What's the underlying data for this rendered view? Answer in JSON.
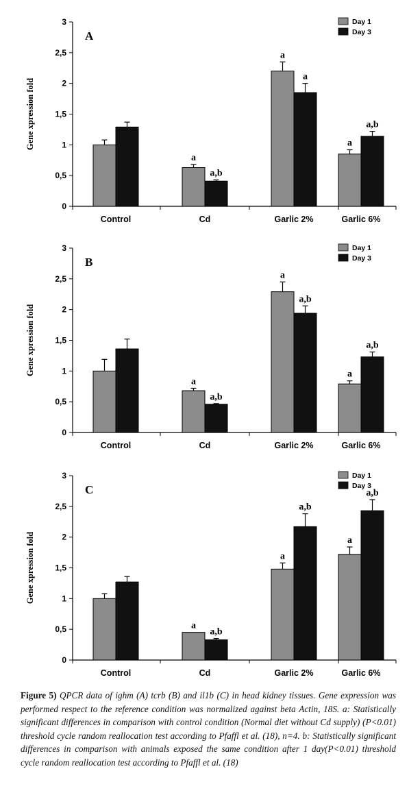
{
  "figure": {
    "caption_label": "Figure 5)",
    "caption_text": " QPCR data of ighm (A) tcrb (B) and il1b (C) in head kidney tissues. Gene expression was performed respect to the reference condition was normalized against beta Actin, 18S. a: Statistically significant differences  in comparison with control condition (Normal diet without Cd supply) (P<0.01) threshold cycle random reallocation test according to Pfaffl et al. (18), n=4. b: Statistically significant differences in comparison with animals exposed the same condition after 1 day(P<0.01) threshold cycle random reallocation test according to Pfaffl et al. (18)"
  },
  "chart_data": [
    {
      "type": "bar",
      "panel_label": "A",
      "ylabel": "Gene xpression fold",
      "ylim": [
        0,
        3
      ],
      "yticks": [
        "0",
        "0,5",
        "1",
        "1,5",
        "2",
        "2,5",
        "3"
      ],
      "categories": [
        "Control",
        "Cd",
        "Garlic 2%",
        "Garlic 6%"
      ],
      "legend_position": "top-right",
      "grid": false,
      "colors": [
        "#8c8c8c",
        "#111111"
      ],
      "series": [
        {
          "name": "Day 1",
          "values": [
            1.0,
            0.63,
            2.2,
            0.85
          ],
          "errors": [
            0.08,
            0.05,
            0.15,
            0.07
          ],
          "labels": [
            "",
            "a",
            "a",
            "a"
          ]
        },
        {
          "name": "Day 3",
          "values": [
            1.29,
            0.41,
            1.85,
            1.14
          ],
          "errors": [
            0.08,
            0.02,
            0.15,
            0.08
          ],
          "labels": [
            "",
            "a,b",
            "a",
            "a,b"
          ]
        }
      ]
    },
    {
      "type": "bar",
      "panel_label": "B",
      "ylabel": "Gene xpression fold",
      "ylim": [
        0,
        3
      ],
      "yticks": [
        "0",
        "0,5",
        "1",
        "1,5",
        "2",
        "2,5",
        "3"
      ],
      "categories": [
        "Control",
        "Cd",
        "Garlic 2%",
        "Garlic 6%"
      ],
      "legend_position": "top-right",
      "grid": false,
      "colors": [
        "#8c8c8c",
        "#111111"
      ],
      "series": [
        {
          "name": "Day 1",
          "values": [
            1.0,
            0.68,
            2.29,
            0.79
          ],
          "errors": [
            0.19,
            0.04,
            0.16,
            0.05
          ],
          "labels": [
            "",
            "a",
            "a",
            "a"
          ]
        },
        {
          "name": "Day 3",
          "values": [
            1.36,
            0.46,
            1.94,
            1.23
          ],
          "errors": [
            0.16,
            0.01,
            0.12,
            0.08
          ],
          "labels": [
            "",
            "a,b",
            "a,b",
            "a,b"
          ]
        }
      ]
    },
    {
      "type": "bar",
      "panel_label": "C",
      "ylabel": "Gene xpression fold",
      "ylim": [
        0,
        3
      ],
      "yticks": [
        "0",
        "0,5",
        "1",
        "1,5",
        "2",
        "2,5",
        "3"
      ],
      "categories": [
        "Control",
        "Cd",
        "Garlic 2%",
        "Garlic 6%"
      ],
      "legend_position": "top-right",
      "grid": false,
      "colors": [
        "#8c8c8c",
        "#111111"
      ],
      "series": [
        {
          "name": "Day 1",
          "values": [
            1.0,
            0.45,
            1.48,
            1.72
          ],
          "errors": [
            0.08,
            0.0,
            0.1,
            0.12
          ],
          "labels": [
            "",
            "a",
            "a",
            "a"
          ]
        },
        {
          "name": "Day 3",
          "values": [
            1.27,
            0.33,
            2.17,
            2.43
          ],
          "errors": [
            0.09,
            0.02,
            0.21,
            0.18
          ],
          "labels": [
            "",
            "a,b",
            "a,b",
            "a,b"
          ]
        }
      ]
    }
  ]
}
